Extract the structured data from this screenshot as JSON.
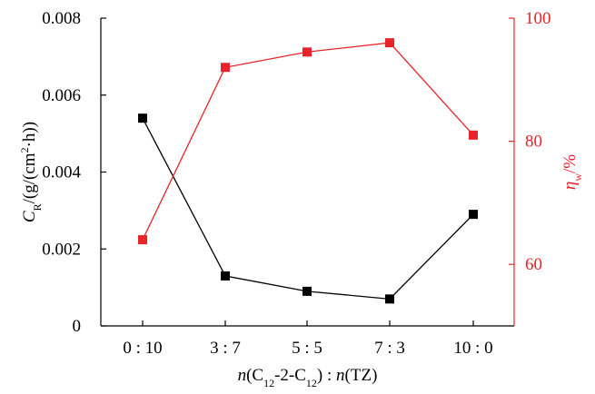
{
  "chart_data": {
    "type": "line",
    "categories": [
      "0 : 10",
      "3 : 7",
      "5 : 5",
      "7 : 3",
      "10 : 0"
    ],
    "xlabel": {
      "parts": [
        {
          "text": "n",
          "italic": true
        },
        {
          "text": "(C"
        },
        {
          "text": "12",
          "sub": true
        },
        {
          "text": "-2-C"
        },
        {
          "text": "12",
          "sub": true
        },
        {
          "text": ") : "
        },
        {
          "text": "n",
          "italic": true
        },
        {
          "text": "(TZ)"
        }
      ]
    },
    "y_left": {
      "label_parts": [
        {
          "text": "C",
          "italic": true
        },
        {
          "text": "R",
          "sub": true
        },
        {
          "text": "/(g/(cm"
        },
        {
          "text": "2",
          "sup": true
        },
        {
          "text": "·h))"
        }
      ],
      "ylim": [
        0,
        0.008
      ],
      "ticks": [
        "0",
        "0.002",
        "0.004",
        "0.006",
        "0.008"
      ],
      "tick_values": [
        0,
        0.002,
        0.004,
        0.006,
        0.008
      ],
      "color": "#000000"
    },
    "y_right": {
      "label_parts": [
        {
          "text": "η",
          "italic": true
        },
        {
          "text": "w",
          "sub": true
        },
        {
          "text": "/%"
        }
      ],
      "ylim": [
        50,
        100
      ],
      "ticks": [
        "60",
        "80",
        "100"
      ],
      "tick_values": [
        60,
        80,
        100
      ],
      "color": "#e8232a"
    },
    "series": [
      {
        "axis": "left",
        "color": "#000000",
        "marker": "square",
        "values": [
          0.0054,
          0.0013,
          0.0009,
          0.0007,
          0.0029
        ]
      },
      {
        "axis": "right",
        "color": "#e8232a",
        "marker": "square",
        "values": [
          64,
          92,
          94.5,
          96,
          81
        ]
      }
    ],
    "grid": false,
    "legend": "none"
  }
}
